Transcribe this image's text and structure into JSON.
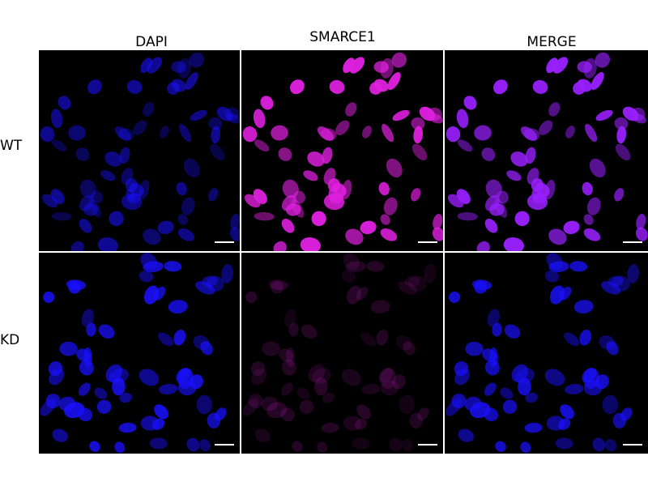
{
  "columns": [
    "DAPI",
    "SMARCE1",
    "MERGE"
  ],
  "rows": [
    {
      "label": "WT",
      "smarce1_signal": "high"
    },
    {
      "label": "KD",
      "smarce1_signal": "low"
    }
  ],
  "colors": {
    "dapi": "#1a10ff",
    "smarce1": "#e020e0",
    "merge": "#9a20ff",
    "scale_bar": "#ffffff"
  }
}
